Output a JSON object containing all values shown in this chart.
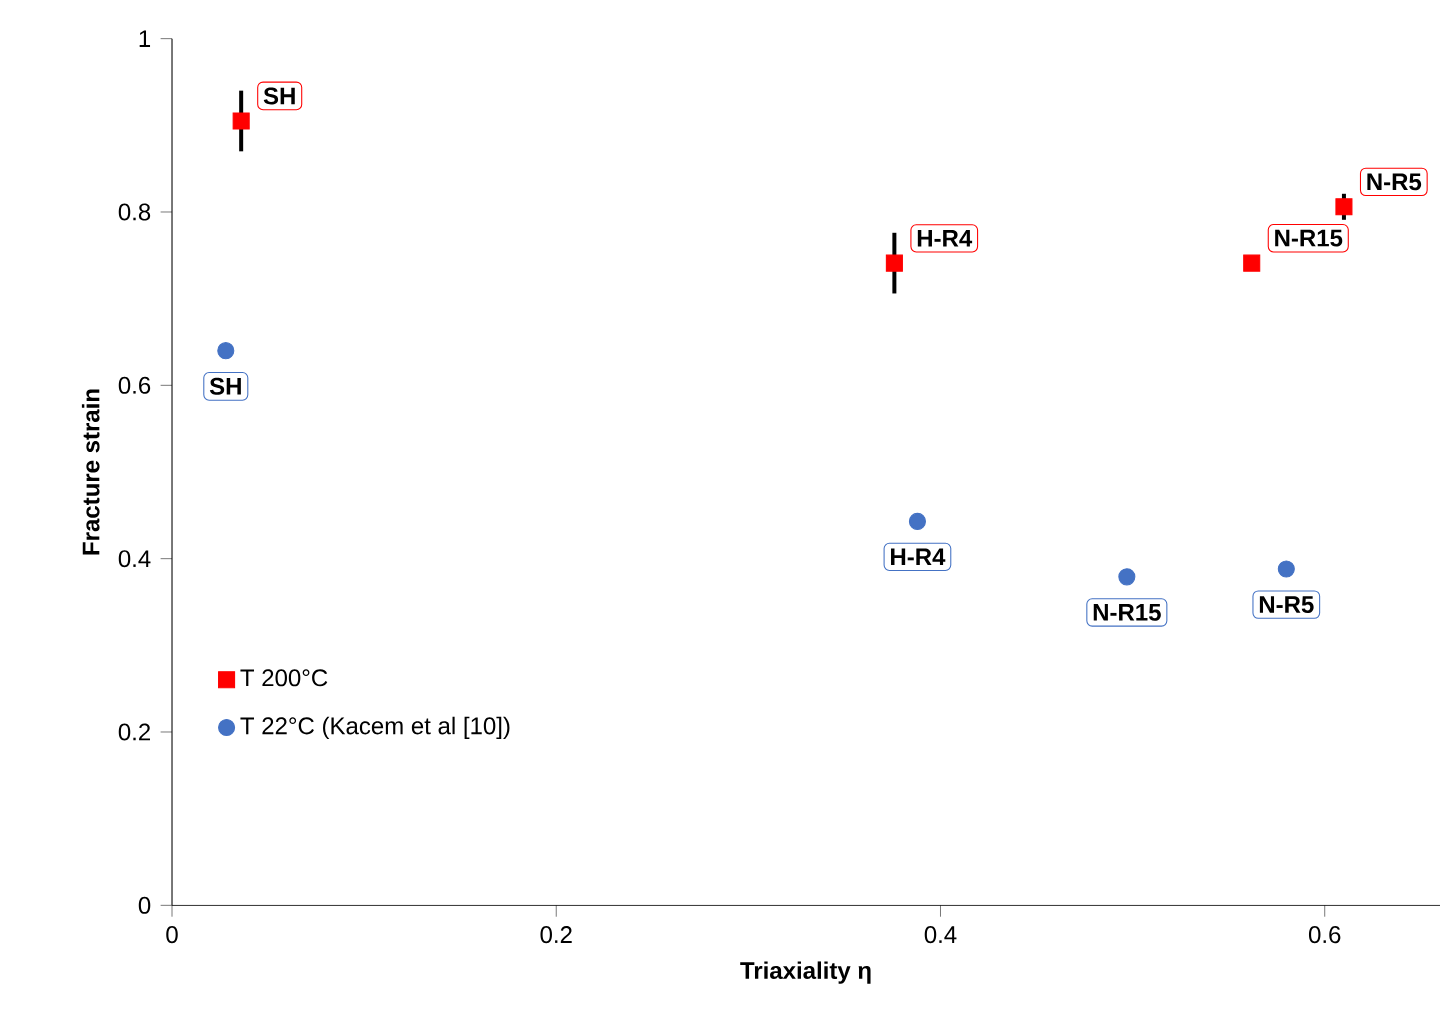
{
  "chart_data": {
    "type": "scatter",
    "xlabel": "Triaxiality η",
    "ylabel": "Fracture strain",
    "xlim": [
      0,
      0.66
    ],
    "ylim": [
      0,
      1
    ],
    "xticks": [
      0,
      0.2,
      0.4,
      0.6
    ],
    "yticks": [
      0,
      0.2,
      0.4,
      0.6,
      0.8,
      1
    ],
    "grid": false,
    "legend": "bottom left",
    "series": [
      {
        "name": "T 200°C",
        "color": "#ff0000",
        "marker": "square",
        "x": [
          0.036,
          0.376,
          0.562,
          0.61
        ],
        "values": [
          0.905,
          0.741,
          0.741,
          0.806
        ],
        "errors": [
          0.035,
          0.035,
          null,
          0.015
        ]
      },
      {
        "name": "T 22°C (Kacem et al [10])",
        "color": "#4472c4",
        "marker": "circle",
        "x": [
          0.028,
          0.388,
          0.497,
          0.58
        ],
        "values": [
          0.64,
          0.443,
          0.379,
          0.388
        ]
      }
    ],
    "annotations": [
      {
        "text": "SH",
        "x": 0.036,
        "y": 0.905
      },
      {
        "text": "H-R4",
        "x": 0.376,
        "y": 0.741
      },
      {
        "text": "N-R15",
        "x": 0.562,
        "y": 0.741
      },
      {
        "text": "N-R5",
        "x": 0.61,
        "y": 0.806
      },
      {
        "text": "SH",
        "x": 0.028,
        "y": 0.64
      },
      {
        "text": "H-R4",
        "x": 0.388,
        "y": 0.443
      },
      {
        "text": "N-R15",
        "x": 0.497,
        "y": 0.379
      },
      {
        "text": "N-R5",
        "x": 0.58,
        "y": 0.388
      }
    ]
  }
}
